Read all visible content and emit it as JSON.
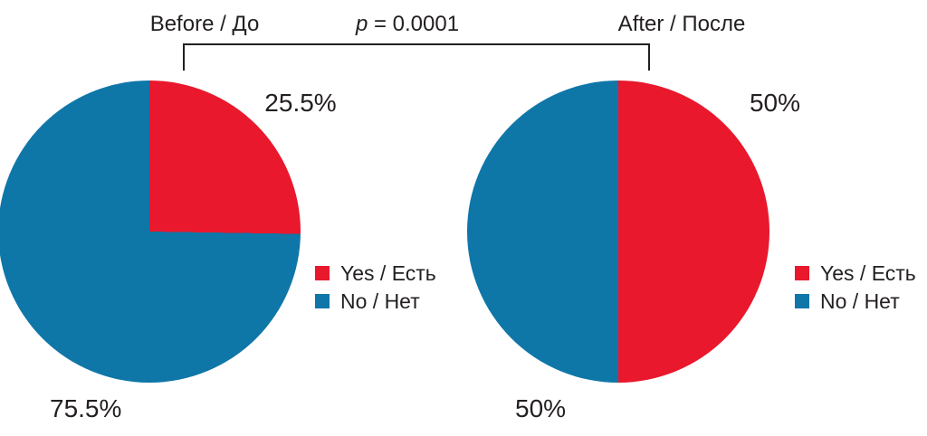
{
  "annotation": {
    "p_symbol": "p",
    "p_rest": " = 0.0001"
  },
  "colors": {
    "yes": "#E9182C",
    "no": "#0F76A8",
    "text": "#231F20",
    "bracket_line": "#231F20",
    "background": "#FFFFFF"
  },
  "chart_data": [
    {
      "type": "pie",
      "title": "Before / До",
      "labels": [
        "Yes / Есть",
        "No / Нет"
      ],
      "values": [
        25.5,
        75.5
      ],
      "slice_labels": [
        "25.5%",
        "75.5%"
      ],
      "colors": [
        "#E9182C",
        "#0F76A8"
      ],
      "start_angle_deg": 0,
      "direction": "clockwise",
      "legend_position": "right"
    },
    {
      "type": "pie",
      "title": "After / После",
      "labels": [
        "Yes / Есть",
        "No / Нет"
      ],
      "values": [
        50,
        50
      ],
      "slice_labels": [
        "50%",
        "50%"
      ],
      "colors": [
        "#E9182C",
        "#0F76A8"
      ],
      "start_angle_deg": 0,
      "direction": "clockwise",
      "legend_position": "right"
    }
  ]
}
